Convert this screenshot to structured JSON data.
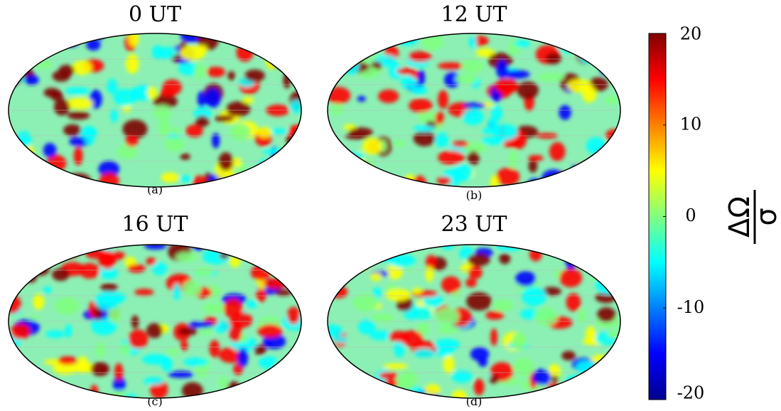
{
  "panels": [
    {
      "title": "0 UT",
      "label": "(a)"
    },
    {
      "title": "12 UT",
      "label": "(b)"
    },
    {
      "title": "16 UT",
      "label": "(c)"
    },
    {
      "title": "23 UT",
      "label": "(d)"
    }
  ],
  "colorbar": {
    "label_numerator": "ΔΩ",
    "label_denominator": "σ",
    "lim": [
      -20,
      20
    ],
    "ticks": [
      20,
      10,
      0,
      -10,
      -20
    ],
    "colormap": "jet"
  }
}
